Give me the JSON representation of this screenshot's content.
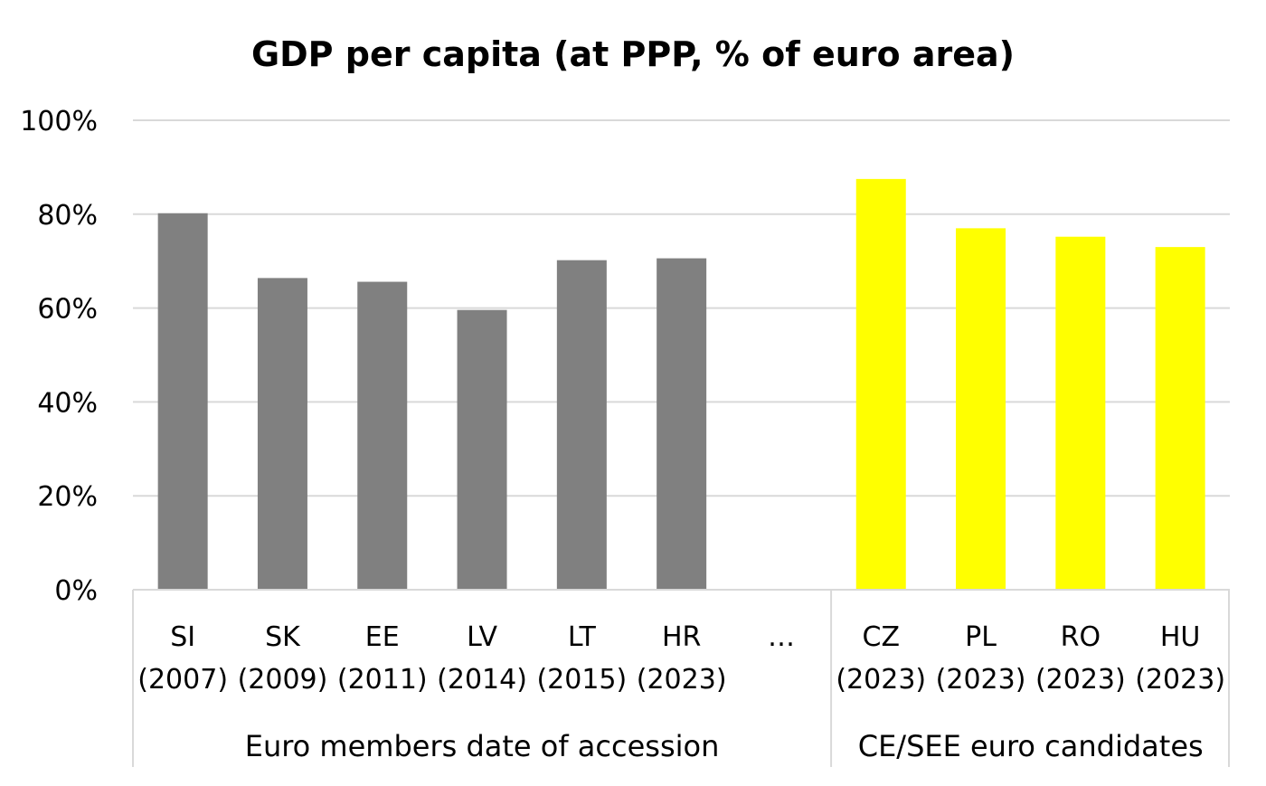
{
  "chart_data": {
    "type": "bar",
    "title": "GDP per capita (at PPP, % of euro area)",
    "xlabel": "",
    "ylabel": "",
    "ylim": [
      0,
      100
    ],
    "y_ticks": [
      "0%",
      "20%",
      "40%",
      "60%",
      "80%",
      "100%"
    ],
    "grid": true,
    "legend": "none",
    "categories": [
      {
        "code": "SI",
        "year": "(2007)",
        "value": 80.2,
        "color": "#808080"
      },
      {
        "code": "SK",
        "year": "(2009)",
        "value": 66.4,
        "color": "#808080"
      },
      {
        "code": "EE",
        "year": "(2011)",
        "value": 65.6,
        "color": "#808080"
      },
      {
        "code": "LV",
        "year": "(2014)",
        "value": 59.6,
        "color": "#808080"
      },
      {
        "code": "LT",
        "year": "(2015)",
        "value": 70.2,
        "color": "#808080"
      },
      {
        "code": "HR",
        "year": "(2023)",
        "value": 70.6,
        "color": "#808080"
      },
      {
        "code": "…",
        "year": "",
        "value": null,
        "color": "#808080"
      },
      {
        "code": "CZ",
        "year": "(2023)",
        "value": 87.5,
        "color": "#ffff00"
      },
      {
        "code": "PL",
        "year": "(2023)",
        "value": 77.0,
        "color": "#ffff00"
      },
      {
        "code": "RO",
        "year": "(2023)",
        "value": 75.2,
        "color": "#ffff00"
      },
      {
        "code": "HU",
        "year": "(2023)",
        "value": 73.0,
        "color": "#ffff00"
      }
    ],
    "groups": [
      {
        "label": "Euro members date of accession",
        "first": 0,
        "last": 6
      },
      {
        "label": "CE/SEE euro candidates",
        "first": 7,
        "last": 10
      }
    ]
  }
}
